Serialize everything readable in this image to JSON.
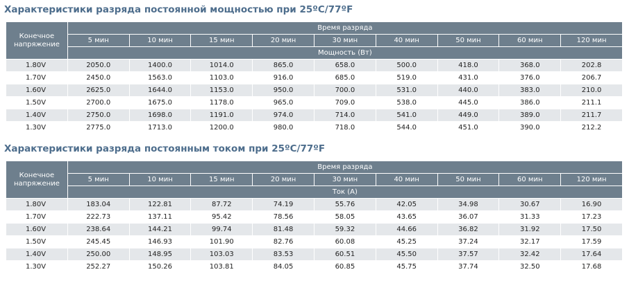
{
  "tables": [
    {
      "title": "Характеристики разряда постоянной мощностью при 25ºC/77ºF",
      "header": {
        "first": "Конечное напряжение",
        "group": "Время разряда",
        "columns": [
          "5 мин",
          "10 мин",
          "15 мин",
          "20 мин",
          "30 мин",
          "40 мин",
          "50 мин",
          "60 мин",
          "120 мин"
        ],
        "unit": "Мощность (Вт)"
      },
      "rows": [
        [
          "1.80V",
          "2050.0",
          "1400.0",
          "1014.0",
          "865.0",
          "658.0",
          "500.0",
          "418.0",
          "368.0",
          "202.8"
        ],
        [
          "1.70V",
          "2450.0",
          "1563.0",
          "1103.0",
          "916.0",
          "685.0",
          "519.0",
          "431.0",
          "376.0",
          "206.7"
        ],
        [
          "1.60V",
          "2625.0",
          "1644.0",
          "1153.0",
          "950.0",
          "700.0",
          "531.0",
          "440.0",
          "383.0",
          "210.0"
        ],
        [
          "1.50V",
          "2700.0",
          "1675.0",
          "1178.0",
          "965.0",
          "709.0",
          "538.0",
          "445.0",
          "386.0",
          "211.1"
        ],
        [
          "1.40V",
          "2750.0",
          "1698.0",
          "1191.0",
          "974.0",
          "714.0",
          "541.0",
          "449.0",
          "389.0",
          "211.7"
        ],
        [
          "1.30V",
          "2775.0",
          "1713.0",
          "1200.0",
          "980.0",
          "718.0",
          "544.0",
          "451.0",
          "390.0",
          "212.2"
        ]
      ]
    },
    {
      "title": "Характеристики разряда постоянным током при 25ºC/77ºF",
      "header": {
        "first": "Конечное напряжение",
        "group": "Время разряда",
        "columns": [
          "5 мин",
          "10 мин",
          "15 мин",
          "20 мин",
          "30 мин",
          "40 мин",
          "50 мин",
          "60 мин",
          "120 мин"
        ],
        "unit": "Ток (A)"
      },
      "rows": [
        [
          "1.80V",
          "183.04",
          "122.81",
          "87.72",
          "74.19",
          "55.76",
          "42.05",
          "34.98",
          "30.67",
          "16.90"
        ],
        [
          "1.70V",
          "222.73",
          "137.11",
          "95.42",
          "78.56",
          "58.05",
          "43.65",
          "36.07",
          "31.33",
          "17.23"
        ],
        [
          "1.60V",
          "238.64",
          "144.21",
          "99.74",
          "81.48",
          "59.32",
          "44.66",
          "36.82",
          "31.92",
          "17.50"
        ],
        [
          "1.50V",
          "245.45",
          "146.93",
          "101.90",
          "82.76",
          "60.08",
          "45.25",
          "37.24",
          "32.17",
          "17.59"
        ],
        [
          "1.40V",
          "250.00",
          "148.95",
          "103.03",
          "83.53",
          "60.51",
          "45.50",
          "37.57",
          "32.42",
          "17.64"
        ],
        [
          "1.30V",
          "252.27",
          "150.26",
          "103.81",
          "84.05",
          "60.85",
          "45.75",
          "37.74",
          "32.50",
          "17.68"
        ]
      ]
    }
  ]
}
